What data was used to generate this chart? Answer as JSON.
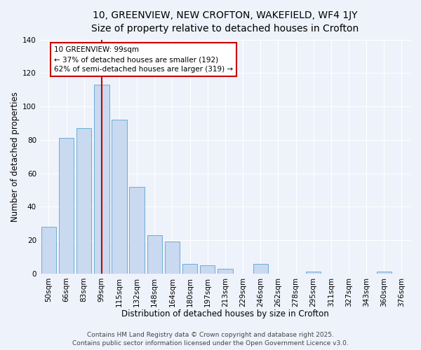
{
  "title_line1": "10, GREENVIEW, NEW CROFTON, WAKEFIELD, WF4 1JY",
  "title_line2": "Size of property relative to detached houses in Crofton",
  "xlabel": "Distribution of detached houses by size in Crofton",
  "ylabel": "Number of detached properties",
  "bar_labels": [
    "50sqm",
    "66sqm",
    "83sqm",
    "99sqm",
    "115sqm",
    "132sqm",
    "148sqm",
    "164sqm",
    "180sqm",
    "197sqm",
    "213sqm",
    "229sqm",
    "246sqm",
    "262sqm",
    "278sqm",
    "295sqm",
    "311sqm",
    "327sqm",
    "343sqm",
    "360sqm",
    "376sqm"
  ],
  "bar_values": [
    28,
    81,
    87,
    113,
    92,
    52,
    23,
    19,
    6,
    5,
    3,
    0,
    6,
    0,
    0,
    1,
    0,
    0,
    0,
    1,
    0
  ],
  "bar_color": "#c8d9f0",
  "bar_edge_color": "#6baed6",
  "vline_x": 3,
  "vline_color": "#cc0000",
  "annotation_line1": "10 GREENVIEW: 99sqm",
  "annotation_line2": "← 37% of detached houses are smaller (192)",
  "annotation_line3": "62% of semi-detached houses are larger (319) →",
  "annotation_box_color": "#ffffff",
  "annotation_box_edge_color": "#cc0000",
  "ylim": [
    0,
    140
  ],
  "yticks": [
    0,
    20,
    40,
    60,
    80,
    100,
    120,
    140
  ],
  "footer_line1": "Contains HM Land Registry data © Crown copyright and database right 2025.",
  "footer_line2": "Contains public sector information licensed under the Open Government Licence v3.0.",
  "bg_color": "#eef2fb",
  "grid_color": "#ffffff",
  "title_fontsize": 10,
  "subtitle_fontsize": 9,
  "axis_label_fontsize": 8.5,
  "tick_fontsize": 7.5,
  "annotation_fontsize": 7.5,
  "footer_fontsize": 6.5
}
